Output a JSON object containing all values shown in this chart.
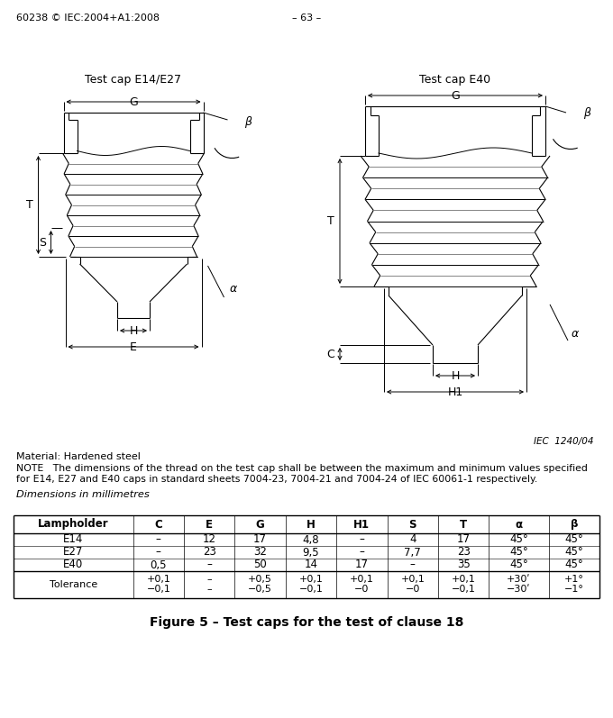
{
  "header_left": "60238 © IEC:2004+A1:2008",
  "header_center": "– 63 –",
  "title_left": "Test cap E14/E27",
  "title_right": "Test cap E40",
  "iec_ref": "IEC  1240/04",
  "material_note": "Material: Hardened steel",
  "note_text": "NOTE   The dimensions of the thread on the test cap shall be between the maximum and minimum values specified\nfor E14, E27 and E40 caps in standard sheets 7004-23, 7004-21 and 7004-24 of IEC 60061-1 respectively.",
  "dim_label": "Dimensions in millimetres",
  "figure_caption": "Figure 5 – Test caps for the test of clause 18",
  "table_headers": [
    "Lampholder",
    "C",
    "E",
    "G",
    "H",
    "H1",
    "S",
    "T",
    "α",
    "β"
  ],
  "table_rows": [
    [
      "E14",
      "–",
      "12",
      "17",
      "4,8",
      "–",
      "4",
      "17",
      "45°",
      "45°"
    ],
    [
      "E27",
      "–",
      "23",
      "32",
      "9,5",
      "–",
      "7,7",
      "23",
      "45°",
      "45°"
    ],
    [
      "E40",
      "0,5",
      "–",
      "50",
      "14",
      "17",
      "–",
      "35",
      "45°",
      "45°"
    ]
  ],
  "tolerance_row": [
    "Tolerance",
    "+0,1\n−0,1",
    "–\n–",
    "+0,5\n−0,5",
    "+0,1\n−0,1",
    "+0,1\n−0",
    "+0,1\n−0",
    "+0,1\n−0,1",
    "+30ʹ\n−30ʹ",
    "+1°\n−1°"
  ],
  "bg_color": "#ffffff",
  "line_color": "#000000",
  "text_color": "#000000"
}
